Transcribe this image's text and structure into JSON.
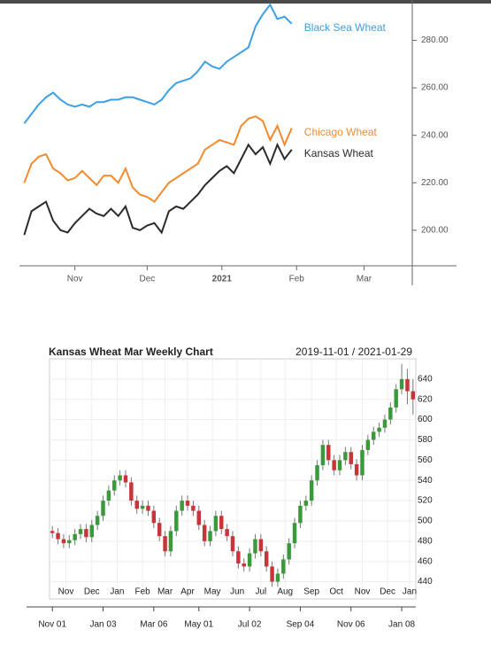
{
  "chart_data": [
    {
      "type": "line",
      "x": [
        10,
        13,
        16,
        19,
        22,
        25,
        28,
        31,
        34,
        37,
        40,
        43,
        46,
        49,
        52,
        55,
        58,
        61,
        64,
        67,
        70,
        73,
        76,
        79,
        82,
        85,
        88,
        91,
        94,
        97,
        100,
        103,
        106,
        109,
        112,
        115,
        118,
        121
      ],
      "series": [
        {
          "name": "Black Sea Wheat",
          "color": "#3d9fe3",
          "values": [
            245,
            249,
            253,
            256,
            258,
            255,
            253,
            252,
            253,
            252,
            254,
            254,
            255,
            255,
            256,
            256,
            255,
            254,
            253,
            255,
            259,
            262,
            263,
            264,
            267,
            271,
            269,
            268,
            271,
            273,
            275,
            277,
            286,
            291,
            295,
            289,
            290,
            287
          ]
        },
        {
          "name": "Chicago Wheat",
          "color": "#f28a2e",
          "values": [
            220,
            228,
            231,
            232,
            226,
            224,
            221,
            222,
            225,
            222,
            219,
            223,
            223,
            220,
            226,
            218,
            215,
            214,
            212,
            216,
            220,
            222,
            224,
            226,
            228,
            234,
            236,
            238,
            237,
            236,
            244,
            247,
            248,
            246,
            238,
            244,
            236,
            243
          ]
        },
        {
          "name": "Kansas Wheat",
          "color": "#2b2b2b",
          "values": [
            198,
            208,
            210,
            212,
            204,
            200,
            199,
            203,
            206,
            209,
            207,
            206,
            209,
            206,
            210,
            201,
            200,
            202,
            203,
            199,
            208,
            210,
            209,
            212,
            215,
            219,
            222,
            225,
            227,
            224,
            230,
            236,
            232,
            235,
            228,
            236,
            230,
            234
          ]
        }
      ],
      "xlim": [
        8,
        171
      ],
      "xticks": [
        {
          "value": 31,
          "label": "Nov"
        },
        {
          "value": 61,
          "label": "Dec"
        },
        {
          "value": 92,
          "label": "2021"
        },
        {
          "value": 123,
          "label": "Feb"
        },
        {
          "value": 151,
          "label": "Mar"
        }
      ],
      "ylim": [
        185,
        297
      ],
      "yticks": [
        {
          "value": 200,
          "label": "200.00"
        },
        {
          "value": 220,
          "label": "220.00"
        },
        {
          "value": 240,
          "label": "240.00"
        },
        {
          "value": 260,
          "label": "260.00"
        },
        {
          "value": 280,
          "label": "280.00"
        }
      ],
      "grid": false
    },
    {
      "type": "candlestick",
      "title": "Kansas Wheat Mar Weekly Chart",
      "subtitle": "2019-11-01 / 2021-01-29",
      "up_color": "#3a9a3a",
      "down_color": "#c8343a",
      "open": [
        490,
        488,
        482,
        478,
        481,
        487,
        492,
        484,
        496,
        505,
        520,
        530,
        540,
        545,
        538,
        520,
        512,
        515,
        510,
        498,
        485,
        470,
        490,
        510,
        520,
        515,
        510,
        496,
        480,
        490,
        505,
        492,
        485,
        470,
        458,
        455,
        468,
        482,
        470,
        455,
        440,
        448,
        462,
        478,
        498,
        515,
        520,
        540,
        555,
        575,
        560,
        550,
        560,
        568,
        556,
        545,
        570,
        580,
        588,
        592,
        600,
        612,
        630,
        640,
        628
      ],
      "high": [
        495,
        493,
        487,
        486,
        492,
        497,
        497,
        501,
        510,
        525,
        535,
        545,
        550,
        550,
        543,
        525,
        520,
        520,
        515,
        503,
        490,
        495,
        515,
        525,
        525,
        520,
        515,
        501,
        495,
        510,
        510,
        497,
        490,
        475,
        463,
        473,
        487,
        487,
        475,
        460,
        453,
        467,
        483,
        503,
        520,
        525,
        545,
        560,
        580,
        580,
        565,
        565,
        573,
        573,
        561,
        575,
        585,
        593,
        597,
        605,
        617,
        635,
        655,
        650,
        640
      ],
      "low": [
        483,
        477,
        473,
        473,
        476,
        482,
        479,
        479,
        491,
        500,
        515,
        525,
        535,
        533,
        515,
        507,
        507,
        505,
        493,
        480,
        465,
        465,
        485,
        505,
        510,
        505,
        491,
        475,
        475,
        485,
        487,
        480,
        465,
        453,
        450,
        450,
        463,
        465,
        450,
        435,
        435,
        443,
        457,
        473,
        493,
        510,
        515,
        535,
        550,
        555,
        545,
        545,
        555,
        551,
        540,
        540,
        565,
        575,
        583,
        587,
        595,
        607,
        625,
        615,
        605
      ],
      "close": [
        488,
        482,
        478,
        481,
        487,
        492,
        484,
        496,
        505,
        520,
        530,
        540,
        545,
        538,
        520,
        512,
        515,
        510,
        498,
        485,
        470,
        490,
        510,
        520,
        515,
        510,
        496,
        480,
        490,
        505,
        492,
        485,
        470,
        458,
        455,
        468,
        482,
        470,
        455,
        440,
        448,
        462,
        478,
        498,
        515,
        520,
        540,
        555,
        575,
        560,
        550,
        560,
        568,
        556,
        545,
        570,
        580,
        588,
        592,
        600,
        612,
        630,
        640,
        628,
        620
      ],
      "xlim": [
        -0.5,
        64.5
      ],
      "xticks": [
        {
          "value": 2.4,
          "label": "Nov"
        },
        {
          "value": 7,
          "label": "Dec"
        },
        {
          "value": 11.5,
          "label": "Jan"
        },
        {
          "value": 16,
          "label": "Feb"
        },
        {
          "value": 20,
          "label": "Mar"
        },
        {
          "value": 24,
          "label": "Apr"
        },
        {
          "value": 28.4,
          "label": "May"
        },
        {
          "value": 32.8,
          "label": "Jun"
        },
        {
          "value": 37,
          "label": "Jul"
        },
        {
          "value": 41.3,
          "label": "Aug"
        },
        {
          "value": 46,
          "label": "Sep"
        },
        {
          "value": 50.4,
          "label": "Oct"
        },
        {
          "value": 55,
          "label": "Nov"
        },
        {
          "value": 59.5,
          "label": "Dec"
        },
        {
          "value": 63.4,
          "label": "Jan"
        }
      ],
      "date_ticks": [
        {
          "value": 0,
          "label": "Nov 01"
        },
        {
          "value": 9,
          "label": "Jan 03"
        },
        {
          "value": 18,
          "label": "Mar 06"
        },
        {
          "value": 26,
          "label": "May 01"
        },
        {
          "value": 35,
          "label": "Jul 02"
        },
        {
          "value": 44,
          "label": "Sep 04"
        },
        {
          "value": 53,
          "label": "Nov 06"
        },
        {
          "value": 62,
          "label": "Jan 08"
        }
      ],
      "ylim": [
        423,
        660
      ],
      "yticks": [
        440,
        460,
        480,
        500,
        520,
        540,
        560,
        580,
        600,
        620,
        640
      ],
      "grid": true
    }
  ]
}
